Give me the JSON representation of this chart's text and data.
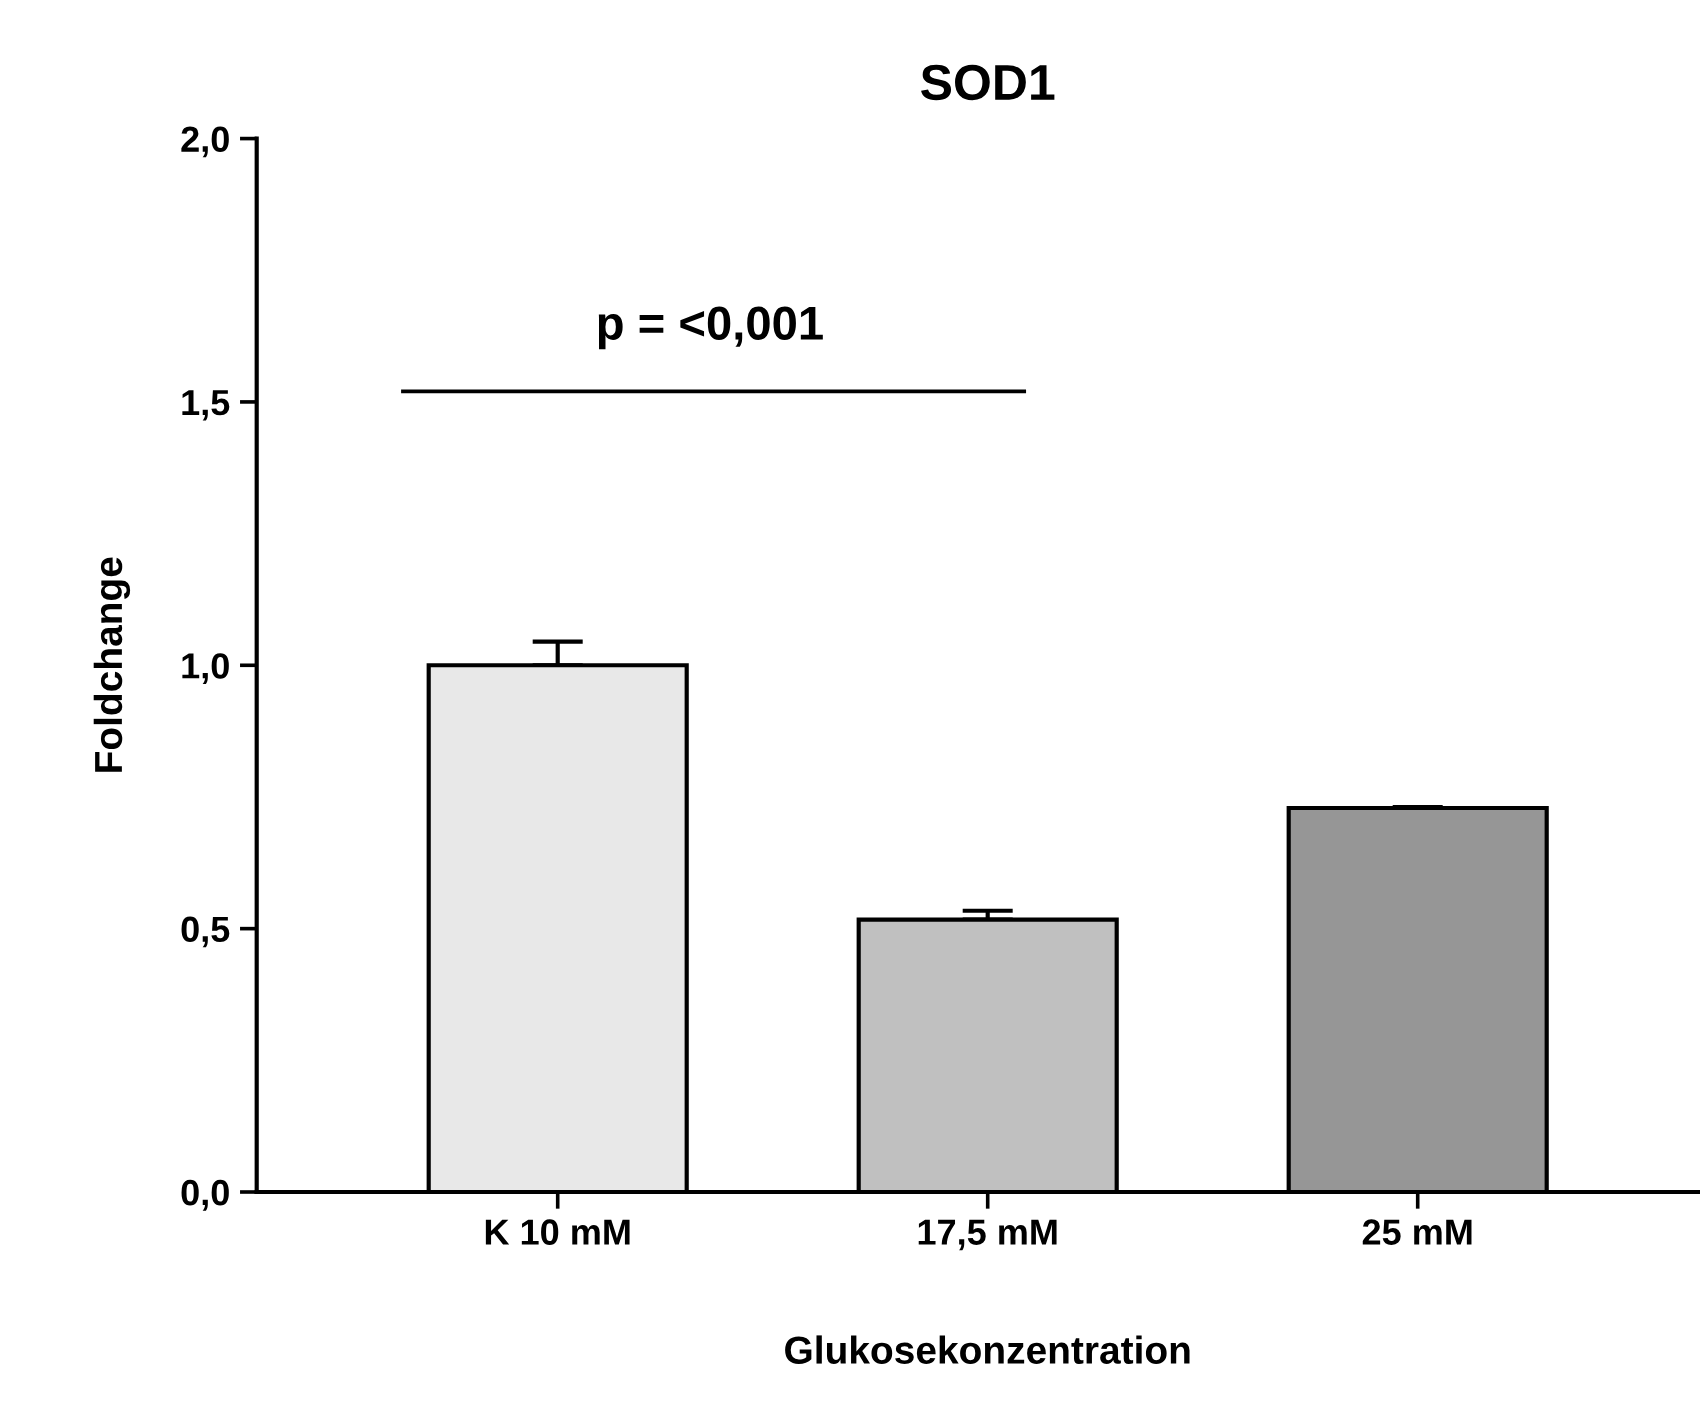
{
  "chart_data": {
    "type": "bar",
    "title": "SOD1",
    "xlabel": "Glukosekonzentration",
    "ylabel": "Foldchange",
    "categories": [
      "K 10 mM",
      "17,5 mM",
      "25 mM"
    ],
    "values": [
      1.0,
      0.517,
      0.729
    ],
    "errors": [
      0.045,
      0.017,
      0.002
    ],
    "colors": [
      "#e8e8e8",
      "#c0c0c0",
      "#969696"
    ],
    "ylim": [
      0,
      2.0
    ],
    "yticks": [
      {
        "value": 0,
        "label": "0,0"
      },
      {
        "value": 0.5,
        "label": "0,5"
      },
      {
        "value": 1.0,
        "label": "1,0"
      },
      {
        "value": 1.5,
        "label": "1,5"
      },
      {
        "value": 2.0,
        "label": "2,0"
      }
    ],
    "annotations": [
      "p = <0,001"
    ],
    "grid": false,
    "legend": false
  }
}
